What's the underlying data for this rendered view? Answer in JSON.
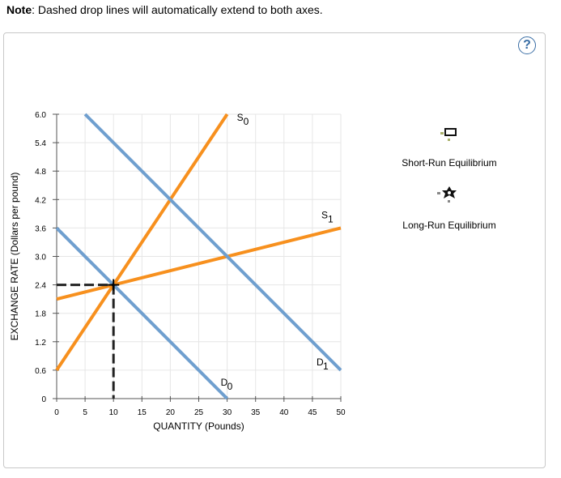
{
  "note": {
    "prefix": "Note",
    "text": ": Dashed drop lines will automatically extend to both axes."
  },
  "help_label": "?",
  "legend": {
    "short_run": "Short-Run Equilibrium",
    "long_run": "Long-Run Equilibrium"
  },
  "colors": {
    "supply": "#f7901e",
    "demand": "#6f9fcf",
    "grid": "#e6e6e6",
    "drop": "#222222"
  },
  "chart_data": {
    "type": "line",
    "xlabel": "QUANTITY (Pounds)",
    "ylabel": "EXCHANGE RATE (Dollars per pound)",
    "xlim": [
      0,
      50
    ],
    "ylim": [
      0,
      6.0
    ],
    "x_ticks": [
      "0",
      "5",
      "10",
      "15",
      "20",
      "25",
      "30",
      "35",
      "40",
      "45",
      "50"
    ],
    "y_ticks": [
      "0",
      "0.6",
      "1.2",
      "1.8",
      "2.4",
      "3.0",
      "3.6",
      "4.2",
      "4.8",
      "5.4",
      "6.0"
    ],
    "grid": true,
    "series": [
      {
        "name": "S",
        "sub": "0",
        "kind": "supply",
        "points": [
          [
            0,
            0.6
          ],
          [
            30,
            6.0
          ]
        ]
      },
      {
        "name": "S",
        "sub": "1",
        "kind": "supply",
        "points": [
          [
            0,
            2.1
          ],
          [
            50,
            3.6
          ]
        ]
      },
      {
        "name": "D",
        "sub": "0",
        "kind": "demand",
        "points": [
          [
            0,
            3.6
          ],
          [
            30,
            0
          ]
        ]
      },
      {
        "name": "D",
        "sub": "1",
        "kind": "demand",
        "points": [
          [
            5,
            6.0
          ],
          [
            50,
            0.6
          ]
        ]
      }
    ],
    "marker": {
      "x": 10,
      "y": 2.4
    }
  }
}
